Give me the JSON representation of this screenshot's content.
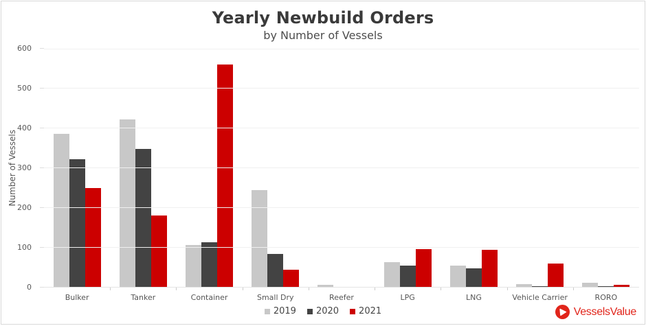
{
  "header": {
    "title": "Yearly Newbuild Orders",
    "subtitle": "by Number of Vessels"
  },
  "chart_data": {
    "type": "bar",
    "title": "Yearly Newbuild Orders",
    "subtitle": "by Number of Vessels",
    "xlabel": "",
    "ylabel": "Number of Vessels",
    "ylim": [
      0,
      600
    ],
    "yticks": [
      0,
      100,
      200,
      300,
      400,
      500,
      600
    ],
    "grid": true,
    "legend_position": "bottom-center",
    "categories": [
      "Bulker",
      "Tanker",
      "Container",
      "Small Dry",
      "Reefer",
      "LPG",
      "LNG",
      "Vehicle Carrier",
      "RORO"
    ],
    "series": [
      {
        "name": "2019",
        "color": "#c8c8c8",
        "values": [
          385,
          421,
          106,
          243,
          5,
          63,
          54,
          7,
          11
        ]
      },
      {
        "name": "2020",
        "color": "#434343",
        "values": [
          321,
          346,
          113,
          82,
          0,
          53,
          46,
          2,
          2
        ]
      },
      {
        "name": "2021",
        "color": "#cc0000",
        "values": [
          249,
          180,
          559,
          43,
          0,
          95,
          94,
          58,
          6
        ]
      }
    ]
  },
  "branding": {
    "logo_text": "VesselsValue",
    "logo_color": "#e1251b"
  },
  "colors": {
    "title_text": "#3a3a3a",
    "axis_text": "#555555",
    "gridline": "#f0f0f0",
    "frame_border": "#d8d8d8",
    "series_2019": "#c8c8c8",
    "series_2020": "#434343",
    "series_2021": "#cc0000"
  }
}
